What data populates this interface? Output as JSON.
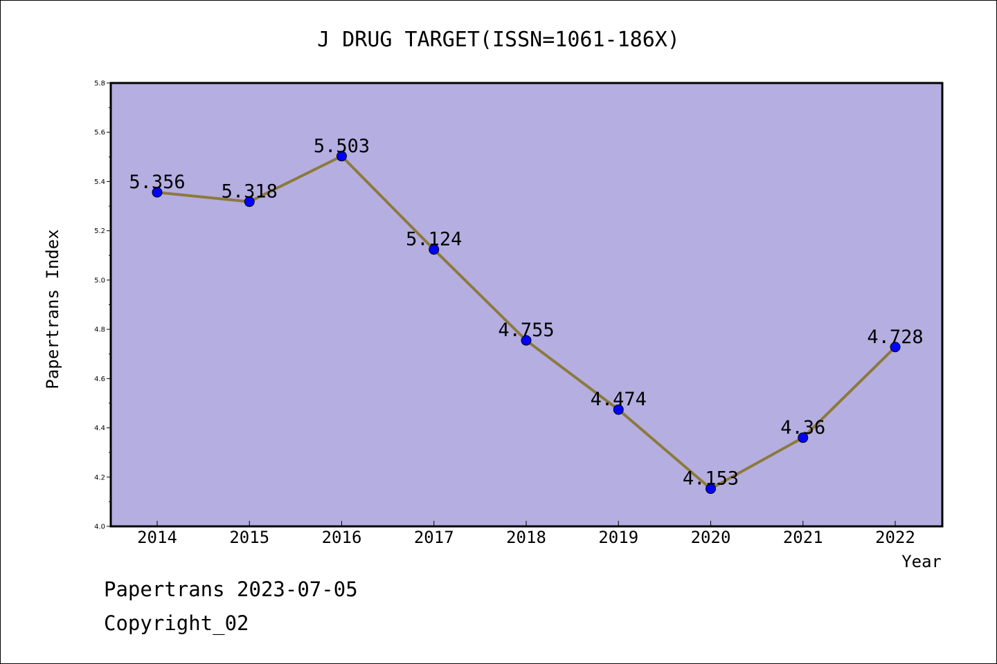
{
  "chart_data": {
    "type": "line",
    "title": "J DRUG TARGET(ISSN=1061-186X)",
    "xlabel": "Year",
    "ylabel": "Papertrans Index",
    "categories": [
      "2014",
      "2015",
      "2016",
      "2017",
      "2018",
      "2019",
      "2020",
      "2021",
      "2022"
    ],
    "series": [
      {
        "values": [
          5.356,
          5.318,
          5.503,
          5.124,
          4.755,
          4.474,
          4.153,
          4.36,
          4.728
        ],
        "labels": [
          "5.356",
          "5.318",
          "5.503",
          "5.124",
          "4.755",
          "4.474",
          "4.153",
          "4.36",
          "4.728"
        ]
      }
    ],
    "ylim": [
      4.0,
      5.8
    ],
    "yticks": [
      "4.0",
      "4.2",
      "4.4",
      "4.6",
      "4.8",
      "5.0",
      "5.2",
      "5.4",
      "5.6",
      "5.8"
    ],
    "grid": false,
    "colors": {
      "plot_background": "#b5aee1",
      "line": "#8c7a3c",
      "marker": "#0000ff"
    }
  },
  "footer": {
    "line1": "Papertrans 2023-07-05",
    "line2": "Copyright_02"
  }
}
